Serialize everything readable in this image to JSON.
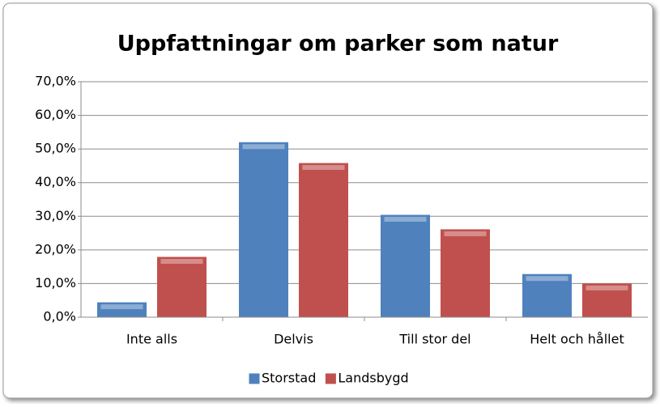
{
  "chart_data": {
    "type": "bar",
    "title": "Uppfattningar om parker som natur",
    "categories": [
      "Inte alls",
      "Delvis",
      "Till stor del",
      "Helt och hållet"
    ],
    "series": [
      {
        "name": "Storstad",
        "color": "#4f81bd",
        "values": [
          4.3,
          51.9,
          30.3,
          12.7
        ]
      },
      {
        "name": "Landsbygd",
        "color": "#c0504d",
        "values": [
          17.8,
          45.7,
          26.0,
          9.9
        ]
      }
    ],
    "ylim": [
      0,
      70
    ],
    "yticks": [
      {
        "value": 0,
        "label": "0,0%"
      },
      {
        "value": 10,
        "label": "10,0%"
      },
      {
        "value": 20,
        "label": "20,0%"
      },
      {
        "value": 30,
        "label": "30,0%"
      },
      {
        "value": 40,
        "label": "40,0%"
      },
      {
        "value": 50,
        "label": "50,0%"
      },
      {
        "value": 60,
        "label": "60,0%"
      },
      {
        "value": 70,
        "label": "70,0%"
      }
    ],
    "grid": true,
    "legend": "bottom"
  }
}
